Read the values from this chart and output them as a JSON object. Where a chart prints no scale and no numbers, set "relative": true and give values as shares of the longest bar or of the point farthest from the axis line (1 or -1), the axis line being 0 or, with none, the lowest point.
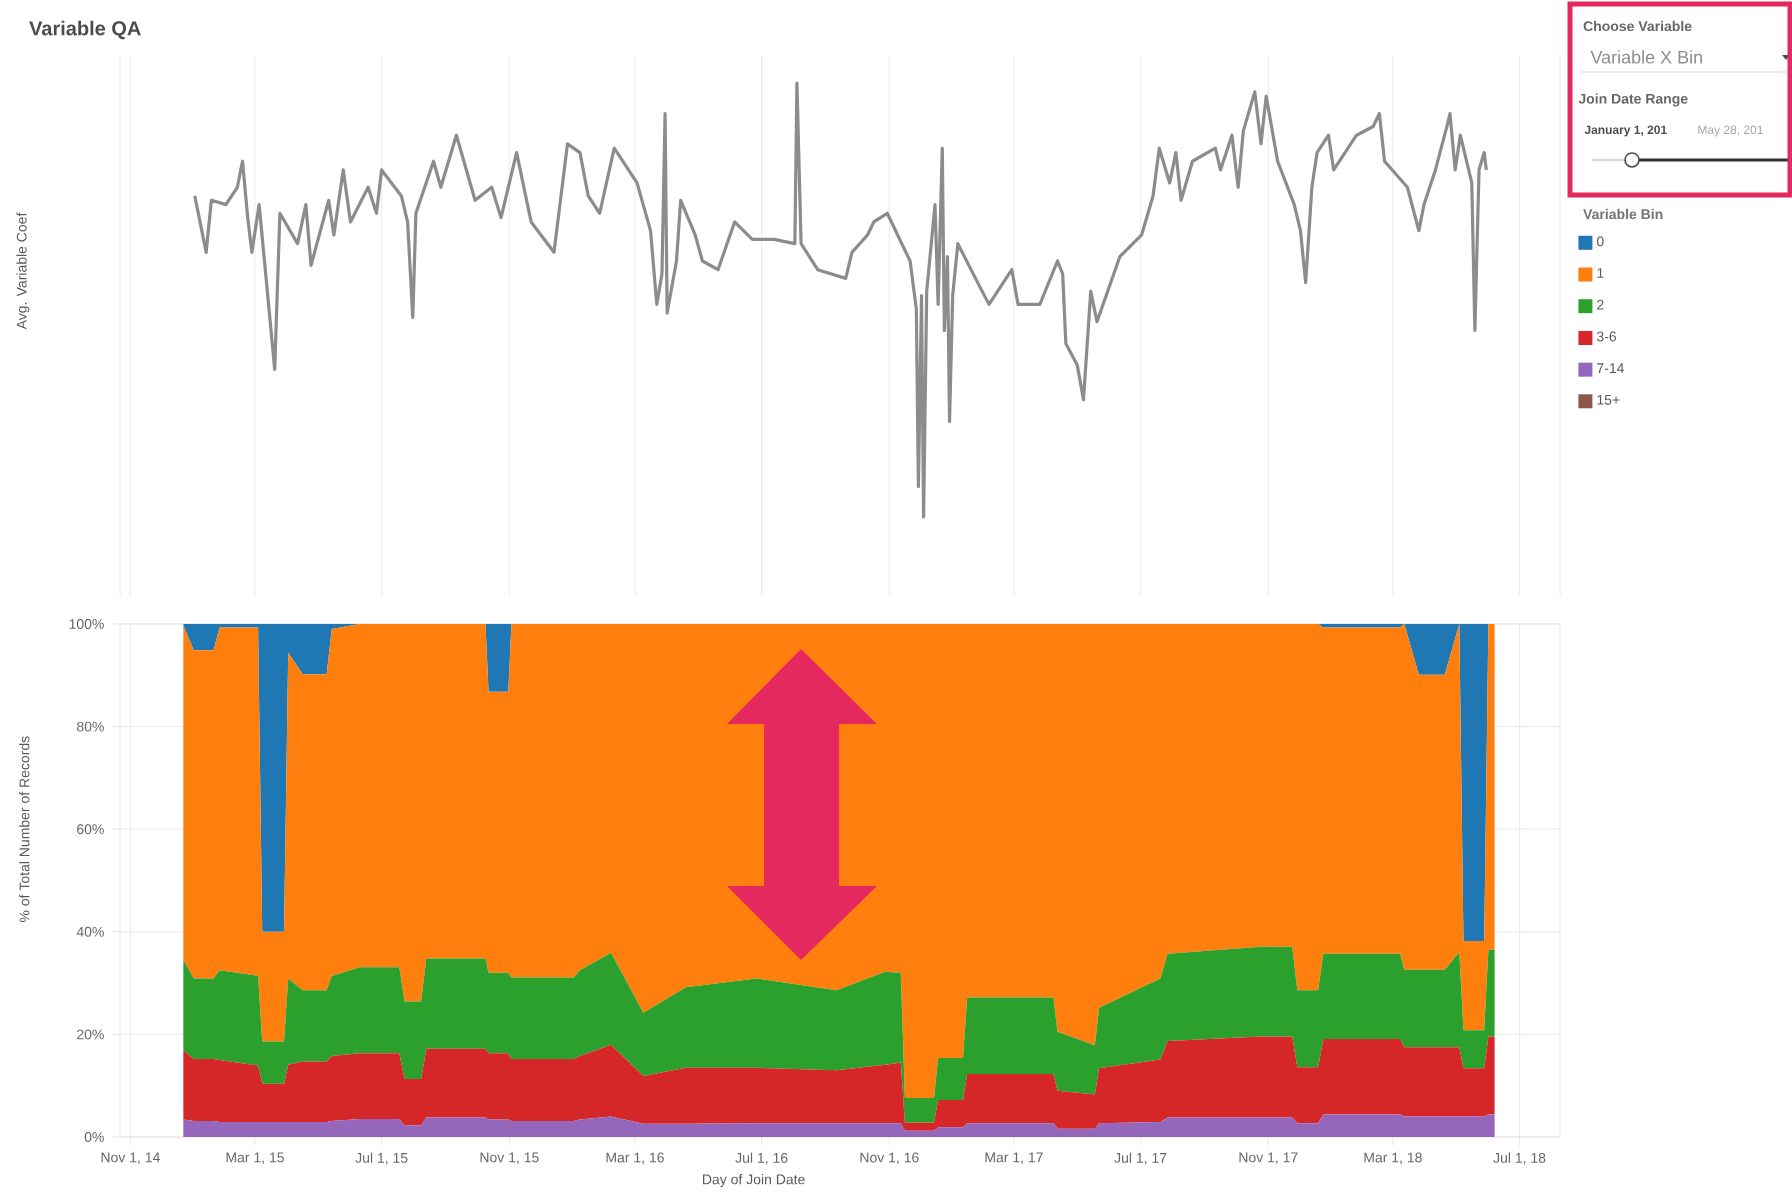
{
  "chart_data": [
    {
      "type": "line",
      "title": "Variable QA",
      "ylabel": "Avg. Variable Coef",
      "relative": true,
      "xlim": [
        "2014-10-22",
        "2018-08-09"
      ],
      "tick_labels": false,
      "grid": "x",
      "color": "#8c8c8c",
      "xticks": [
        {
          "value": "2014-11-01",
          "label": null
        },
        {
          "value": "2015-03-01",
          "label": null
        },
        {
          "value": "2015-07-01",
          "label": null
        },
        {
          "value": "2015-11-01",
          "label": null
        },
        {
          "value": "2016-03-01",
          "label": null
        },
        {
          "value": "2016-07-01",
          "label": null
        },
        {
          "value": "2016-11-01",
          "label": null
        },
        {
          "value": "2017-03-01",
          "label": null
        },
        {
          "value": "2017-07-01",
          "label": null
        },
        {
          "value": "2017-11-01",
          "label": null
        },
        {
          "value": "2018-03-01",
          "label": null
        },
        {
          "value": "2018-07-01",
          "label": null
        }
      ],
      "x": [
        "2015-01-02",
        "2015-01-13",
        "2015-01-18",
        "2015-02-01",
        "2015-02-12",
        "2015-02-17",
        "2015-02-22",
        "2015-02-26",
        "2015-03-05",
        "2015-03-20",
        "2015-03-25",
        "2015-04-11",
        "2015-04-19",
        "2015-04-24",
        "2015-05-11",
        "2015-05-16",
        "2015-05-25",
        "2015-06-01",
        "2015-06-18",
        "2015-06-26",
        "2015-07-01",
        "2015-07-20",
        "2015-07-26",
        "2015-07-31",
        "2015-08-03",
        "2015-08-20",
        "2015-08-27",
        "2015-09-11",
        "2015-09-29",
        "2015-10-15",
        "2015-10-24",
        "2015-11-08",
        "2015-11-22",
        "2015-12-14",
        "2015-12-27",
        "2016-01-08",
        "2016-01-16",
        "2016-01-27",
        "2016-02-10",
        "2016-03-03",
        "2016-03-16",
        "2016-03-22",
        "2016-03-27",
        "2016-03-30",
        "2016-04-01",
        "2016-04-10",
        "2016-04-14",
        "2016-04-28",
        "2016-05-05",
        "2016-05-20",
        "2016-06-05",
        "2016-06-22",
        "2016-07-13",
        "2016-08-02",
        "2016-08-04",
        "2016-08-08",
        "2016-08-24",
        "2016-09-20",
        "2016-09-26",
        "2016-10-11",
        "2016-10-17",
        "2016-10-30",
        "2016-11-21",
        "2016-11-27",
        "2016-11-29",
        "2016-12-02",
        "2016-12-04",
        "2016-12-07",
        "2016-12-15",
        "2016-12-18",
        "2016-12-22",
        "2016-12-24",
        "2016-12-27",
        "2016-12-29",
        "2017-01-01",
        "2017-01-06",
        "2017-01-23",
        "2017-02-05",
        "2017-02-27",
        "2017-03-05",
        "2017-03-26",
        "2017-04-12",
        "2017-04-17",
        "2017-04-20",
        "2017-05-01",
        "2017-05-07",
        "2017-05-14",
        "2017-05-20",
        "2017-06-11",
        "2017-07-02",
        "2017-07-13",
        "2017-07-19",
        "2017-07-29",
        "2017-08-04",
        "2017-08-09",
        "2017-08-20",
        "2017-09-11",
        "2017-09-16",
        "2017-09-27",
        "2017-10-03",
        "2017-10-08",
        "2017-10-19",
        "2017-10-25",
        "2017-10-30",
        "2017-11-10",
        "2017-11-26",
        "2017-12-02",
        "2017-12-07",
        "2017-12-13",
        "2017-12-18",
        "2017-12-29",
        "2018-01-03",
        "2018-01-25",
        "2018-02-10",
        "2018-02-16",
        "2018-02-21",
        "2018-03-15",
        "2018-03-26",
        "2018-03-31",
        "2018-04-11",
        "2018-04-22",
        "2018-04-25",
        "2018-04-30",
        "2018-05-05",
        "2018-05-16",
        "2018-05-19",
        "2018-05-23",
        "2018-05-28",
        "2018-05-30"
      ],
      "values": [
        0.74,
        0.61,
        0.73,
        0.72,
        0.76,
        0.82,
        0.69,
        0.61,
        0.72,
        0.34,
        0.7,
        0.63,
        0.72,
        0.58,
        0.73,
        0.65,
        0.8,
        0.68,
        0.76,
        0.7,
        0.8,
        0.74,
        0.68,
        0.46,
        0.7,
        0.82,
        0.76,
        0.88,
        0.73,
        0.76,
        0.69,
        0.84,
        0.68,
        0.61,
        0.86,
        0.84,
        0.74,
        0.7,
        0.85,
        0.77,
        0.66,
        0.49,
        0.56,
        0.93,
        0.47,
        0.59,
        0.73,
        0.65,
        0.59,
        0.57,
        0.68,
        0.64,
        0.64,
        0.63,
        1,
        0.63,
        0.57,
        0.55,
        0.61,
        0.65,
        0.68,
        0.7,
        0.59,
        0.48,
        0.07,
        0.51,
        0,
        0.52,
        0.72,
        0.49,
        0.85,
        0.43,
        0.6,
        0.22,
        0.51,
        0.63,
        0.55,
        0.49,
        0.57,
        0.49,
        0.49,
        0.59,
        0.56,
        0.4,
        0.35,
        0.27,
        0.52,
        0.45,
        0.6,
        0.65,
        0.74,
        0.85,
        0.77,
        0.84,
        0.73,
        0.82,
        0.85,
        0.8,
        0.88,
        0.76,
        0.89,
        0.98,
        0.86,
        0.97,
        0.82,
        0.72,
        0.66,
        0.54,
        0.76,
        0.84,
        0.88,
        0.8,
        0.88,
        0.9,
        0.93,
        0.82,
        0.76,
        0.66,
        0.72,
        0.8,
        0.9,
        0.93,
        0.8,
        0.88,
        0.77,
        0.43,
        0.8,
        0.84,
        0.8
      ]
    },
    {
      "type": "area",
      "stacked": true,
      "ylabel": "% of Total Number of Records",
      "xlabel": "Day of Join Date",
      "legend_title": "Variable Bin",
      "legend": "right",
      "grid": true,
      "xlim": [
        "2014-10-22",
        "2018-08-09"
      ],
      "ylim": [
        0,
        100
      ],
      "yticks": [
        {
          "value": 0,
          "label": "0%"
        },
        {
          "value": 20,
          "label": "20%"
        },
        {
          "value": 40,
          "label": "40%"
        },
        {
          "value": 60,
          "label": "60%"
        },
        {
          "value": 80,
          "label": "80%"
        },
        {
          "value": 100,
          "label": "100%"
        }
      ],
      "xticks": [
        {
          "value": "2014-11-01",
          "label": "Nov 1, 14"
        },
        {
          "value": "2015-03-01",
          "label": "Mar 1, 15"
        },
        {
          "value": "2015-07-01",
          "label": "Jul 1, 15"
        },
        {
          "value": "2015-11-01",
          "label": "Nov 1, 15"
        },
        {
          "value": "2016-03-01",
          "label": "Mar 1, 16"
        },
        {
          "value": "2016-07-01",
          "label": "Jul 1, 16"
        },
        {
          "value": "2016-11-01",
          "label": "Nov 1, 16"
        },
        {
          "value": "2017-03-01",
          "label": "Mar 1, 17"
        },
        {
          "value": "2017-07-01",
          "label": "Jul 1, 17"
        },
        {
          "value": "2017-11-01",
          "label": "Nov 1, 17"
        },
        {
          "value": "2018-03-01",
          "label": "Mar 1, 18"
        },
        {
          "value": "2018-07-01",
          "label": "Jul 1, 18"
        }
      ],
      "x": [
        "2014-12-22",
        "2015-01-01",
        "2015-01-20",
        "2015-01-26",
        "2015-03-04",
        "2015-03-08",
        "2015-03-29",
        "2015-04-02",
        "2015-04-16",
        "2015-05-09",
        "2015-05-14",
        "2015-06-10",
        "2015-07-18",
        "2015-07-23",
        "2015-08-08",
        "2015-08-13",
        "2015-10-09",
        "2015-10-12",
        "2015-10-31",
        "2015-11-03",
        "2016-01-02",
        "2016-01-08",
        "2016-02-07",
        "2016-03-09",
        "2016-04-19",
        "2016-06-26",
        "2016-09-11",
        "2016-10-28",
        "2016-11-12",
        "2016-11-16",
        "2016-12-14",
        "2016-12-18",
        "2017-01-11",
        "2017-01-15",
        "2017-04-08",
        "2017-04-12",
        "2017-05-18",
        "2017-05-22",
        "2017-07-20",
        "2017-07-27",
        "2017-10-25",
        "2017-11-24",
        "2017-11-29",
        "2017-12-19",
        "2017-12-24",
        "2018-03-08",
        "2018-03-12",
        "2018-03-26",
        "2018-04-20",
        "2018-05-04",
        "2018-05-08",
        "2018-05-28",
        "2018-06-01",
        "2018-06-07"
      ],
      "series": [
        {
          "name": "15+",
          "color": "#8c564b",
          "values": [
            null,
            null,
            null,
            null,
            null,
            null,
            null,
            null,
            null,
            null,
            null,
            null,
            null,
            null,
            null,
            null,
            null,
            null,
            null,
            null,
            null,
            null,
            null,
            null,
            null,
            null,
            null,
            null,
            null,
            null,
            null,
            null,
            null,
            null,
            null,
            null,
            null,
            null,
            null,
            null,
            null,
            null,
            null,
            null,
            null,
            null,
            null,
            null,
            null,
            null,
            null,
            null,
            null,
            null
          ]
        },
        {
          "name": "7-14",
          "color": "#9467bd",
          "values": [
            3.4,
            3.1,
            3.1,
            2.9,
            2.9,
            2.9,
            2.9,
            2.9,
            2.9,
            2.9,
            3.1,
            3.5,
            3.5,
            2.3,
            2.3,
            3.8,
            3.8,
            3.4,
            3.4,
            3.1,
            3.1,
            3.4,
            4.0,
            2.6,
            2.6,
            2.7,
            2.7,
            2.7,
            2.7,
            1.2,
            1.2,
            1.9,
            1.9,
            2.7,
            2.7,
            1.6,
            1.6,
            2.7,
            2.9,
            3.8,
            3.8,
            3.8,
            2.7,
            2.7,
            4.4,
            4.4,
            4.0,
            4.0,
            4.0,
            4.0,
            4.0,
            4.0,
            4.4,
            4.4
          ]
        },
        {
          "name": "3-6",
          "color": "#d62728",
          "values": [
            13.5,
            12.1,
            12.1,
            12.1,
            11.0,
            7.5,
            7.5,
            11.2,
            11.8,
            11.8,
            12.7,
            12.8,
            12.8,
            9.0,
            9.0,
            13.4,
            13.4,
            12.9,
            12.9,
            12.1,
            12.1,
            12.4,
            14.0,
            9.3,
            10.9,
            10.8,
            10.3,
            11.4,
            11.8,
            1.6,
            1.6,
            5.3,
            5.3,
            9.6,
            9.6,
            7.4,
            6.7,
            10.7,
            12.2,
            14.9,
            15.8,
            15.8,
            10.9,
            10.9,
            14.7,
            14.7,
            13.5,
            13.5,
            13.5,
            13.5,
            9.4,
            9.4,
            15.2,
            15.2
          ]
        },
        {
          "name": "2",
          "color": "#2ca02c",
          "values": [
            17.6,
            15.7,
            15.7,
            17.5,
            17.5,
            8.2,
            8.2,
            16.8,
            13.9,
            13.9,
            15.6,
            16.8,
            16.8,
            15.1,
            15.1,
            17.6,
            17.6,
            15.7,
            15.7,
            15.9,
            15.9,
            16.7,
            17.9,
            12.3,
            15.7,
            17.4,
            15.6,
            18.1,
            17.5,
            4.8,
            4.8,
            8.2,
            8.2,
            14.9,
            14.9,
            11.5,
            9.6,
            11.8,
            15.8,
            17.0,
            17.5,
            17.5,
            15.0,
            15.0,
            16.6,
            16.6,
            15.1,
            15.1,
            15.1,
            18.5,
            7.4,
            7.4,
            16.9,
            16.9
          ]
        },
        {
          "name": "1",
          "color": "#ff7f0e",
          "values": [
            65.2,
            64.0,
            64.0,
            66.8,
            67.9,
            21.4,
            21.4,
            63.5,
            61.6,
            61.6,
            67.6,
            66.9,
            66.9,
            73.6,
            73.6,
            65.2,
            65.2,
            54.8,
            54.8,
            68.9,
            68.9,
            67.5,
            64.1,
            75.8,
            70.8,
            69.1,
            71.4,
            67.8,
            68.0,
            92.4,
            92.4,
            84.6,
            84.6,
            72.8,
            72.8,
            79.5,
            82.1,
            74.8,
            69.1,
            64.3,
            62.9,
            62.9,
            71.4,
            71.4,
            63.6,
            63.6,
            67.4,
            57.5,
            57.5,
            64.0,
            17.4,
            17.4,
            63.5,
            63.5
          ]
        },
        {
          "name": "0",
          "color": "#1f77b4",
          "values": [
            0.3,
            5.1,
            5.1,
            0.7,
            0.7,
            60.0,
            60.0,
            5.6,
            9.8,
            9.8,
            1.0,
            0,
            0,
            0,
            0,
            0,
            0,
            13.2,
            13.2,
            0,
            0,
            0,
            0,
            0,
            0,
            0,
            0,
            0,
            0,
            0,
            0,
            0,
            0,
            0,
            0,
            0,
            0,
            0,
            0,
            0,
            0,
            0,
            0,
            0,
            0.7,
            0.7,
            0,
            9.9,
            9.9,
            0,
            61.8,
            61.8,
            0,
            0
          ]
        }
      ]
    },
    {
      "type": "other",
      "title": "Choose Variable",
      "annotations": [
        "Variable X Bin",
        "Join Date Range",
        "January 1, 201",
        "May 28, 201"
      ]
    }
  ]
}
